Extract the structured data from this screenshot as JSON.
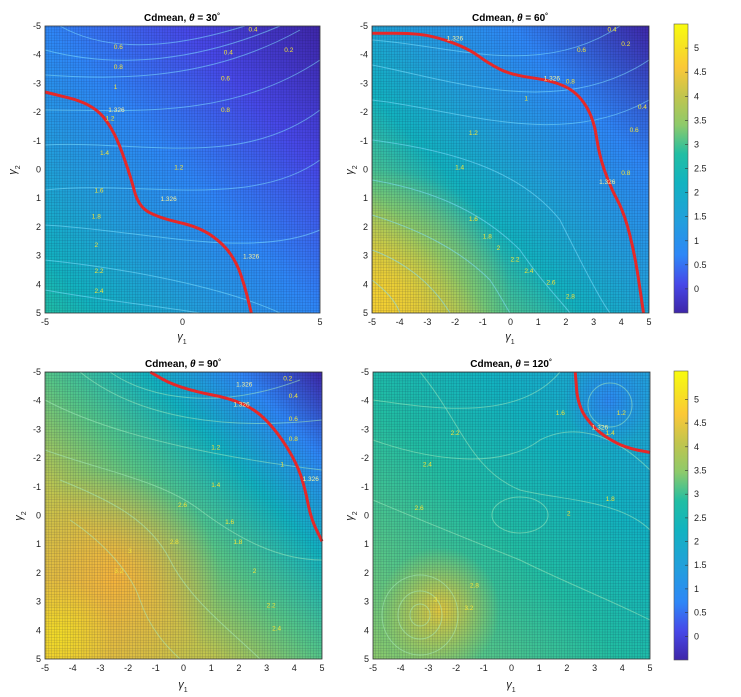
{
  "chart_data": [
    {
      "type": "heatmap",
      "title_prefix": "Cdmean, ",
      "theta_symbol": "θ",
      "title_value": " = 30",
      "degree": "°",
      "xlabel": "γ",
      "xlabel_sub": "1",
      "ylabel": "γ",
      "ylabel_sub": "2",
      "xlim": [
        -5,
        5
      ],
      "ylim": [
        -5,
        5
      ],
      "xticks": [
        "-5",
        "0",
        "5"
      ],
      "yticks": [
        "-5",
        "-4",
        "-3",
        "-2",
        "-1",
        "0",
        "1",
        "2",
        "3",
        "4",
        "5"
      ],
      "critical_value": "1.326",
      "contour_labels": [
        "0.4",
        "0.6",
        "0.8",
        "1",
        "1.2",
        "1.4",
        "1.6",
        "1.8",
        "2",
        "2.2",
        "2.4",
        "0.2",
        "0.4",
        "0.6",
        "0.8",
        "1.2",
        "1.326",
        "1.326",
        "1.326"
      ],
      "critical_curve": [
        [
          -5,
          -2.7
        ],
        [
          -3.3,
          -2.3
        ],
        [
          -2.5,
          -1.4
        ],
        [
          -1.9,
          0.2
        ],
        [
          -1.6,
          1.3
        ],
        [
          -0.8,
          1.7
        ],
        [
          0.6,
          2.0
        ],
        [
          1.5,
          2.6
        ],
        [
          2,
          3.3
        ],
        [
          2.3,
          4.2
        ],
        [
          2.5,
          5
        ]
      ]
    },
    {
      "type": "heatmap",
      "title_prefix": "Cdmean, ",
      "theta_symbol": "θ",
      "title_value": " = 60",
      "degree": "°",
      "xlabel": "γ",
      "xlabel_sub": "1",
      "ylabel": "γ",
      "ylabel_sub": "2",
      "xlim": [
        -5,
        5
      ],
      "ylim": [
        -5,
        5
      ],
      "xticks": [
        "-5",
        "-4",
        "-3",
        "-2",
        "-1",
        "0",
        "1",
        "2",
        "3",
        "4",
        "5"
      ],
      "yticks": [
        "-5",
        "-4",
        "-3",
        "-2",
        "-1",
        "0",
        "1",
        "2",
        "3",
        "4",
        "5"
      ],
      "critical_value": "1.326",
      "contour_labels": [
        "0.4",
        "0.6",
        "0.8",
        "1",
        "1.2",
        "1.4",
        "1.6",
        "1.8",
        "2",
        "2.2",
        "2.4",
        "2.6",
        "2.8",
        "0.2",
        "0.4",
        "0.6",
        "0.8",
        "1.326",
        "1.326",
        "1.326"
      ],
      "critical_curve": [
        [
          -5,
          -4.75
        ],
        [
          -3.5,
          -4.75
        ],
        [
          -2.6,
          -4.6
        ],
        [
          -1.5,
          -4.2
        ],
        [
          -0.8,
          -3.7
        ],
        [
          0,
          -3.3
        ],
        [
          1.5,
          -3.1
        ],
        [
          2.4,
          -2.7
        ],
        [
          3,
          -1.8
        ],
        [
          3.2,
          -0.5
        ],
        [
          3.6,
          0.6
        ],
        [
          4.1,
          1.5
        ],
        [
          4.5,
          3
        ],
        [
          4.8,
          5
        ]
      ]
    },
    {
      "type": "heatmap",
      "title_prefix": "Cdmean, ",
      "theta_symbol": "θ",
      "title_value": " = 90",
      "degree": "°",
      "xlabel": "γ",
      "xlabel_sub": "1",
      "ylabel": "γ",
      "ylabel_sub": "2",
      "xlim": [
        -5,
        5
      ],
      "ylim": [
        -5,
        5
      ],
      "xticks": [
        "-5",
        "-4",
        "-3",
        "-2",
        "-1",
        "0",
        "1",
        "2",
        "3",
        "4",
        "5"
      ],
      "yticks": [
        "-5",
        "-4",
        "-3",
        "-2",
        "-1",
        "0",
        "1",
        "2",
        "3",
        "4",
        "5"
      ],
      "critical_value": "1.326",
      "contour_labels": [
        "0.2",
        "0.4",
        "0.6",
        "0.8",
        "1",
        "1.2",
        "1.4",
        "1.6",
        "1.8",
        "2",
        "2.2",
        "2.4",
        "2.6",
        "2.8",
        "3",
        "3.2",
        "1.326",
        "1.326",
        "1.326"
      ],
      "critical_curve": [
        [
          -1.2,
          -5
        ],
        [
          -0.5,
          -4.6
        ],
        [
          0.5,
          -4.3
        ],
        [
          1.6,
          -4.1
        ],
        [
          2.6,
          -3.7
        ],
        [
          3.4,
          -2.9
        ],
        [
          4.1,
          -1.8
        ],
        [
          4.4,
          -0.9
        ],
        [
          4.6,
          0.1
        ],
        [
          5,
          0.9
        ]
      ]
    },
    {
      "type": "heatmap",
      "title_prefix": "Cdmean, ",
      "theta_symbol": "θ",
      "title_value": " = 120",
      "degree": "°",
      "xlabel": "γ",
      "xlabel_sub": "1",
      "ylabel": "γ",
      "ylabel_sub": "2",
      "xlim": [
        -5,
        5
      ],
      "ylim": [
        -5,
        5
      ],
      "xticks": [
        "-5",
        "-4",
        "-3",
        "-2",
        "-1",
        "0",
        "1",
        "2",
        "3",
        "4",
        "5"
      ],
      "yticks": [
        "-5",
        "-4",
        "-3",
        "-2",
        "-1",
        "0",
        "1",
        "2",
        "3",
        "4",
        "5"
      ],
      "critical_value": "1.326",
      "contour_labels": [
        "1.2",
        "1.4",
        "1.6",
        "1.8",
        "2",
        "2.2",
        "2.4",
        "2.6",
        "2.8",
        "3",
        "3.2",
        "1.326"
      ],
      "critical_curve": [
        [
          2.3,
          -5
        ],
        [
          2.4,
          -3.8
        ],
        [
          3,
          -3
        ],
        [
          3.8,
          -2.5
        ],
        [
          4.4,
          -2.3
        ],
        [
          5,
          -2.2
        ]
      ]
    }
  ],
  "colorbars": [
    {
      "ticks": [
        "0",
        "0.5",
        "1",
        "1.5",
        "2",
        "2.5",
        "3",
        "3.5",
        "4",
        "4.5",
        "5"
      ],
      "range": [
        -0.5,
        5.5
      ]
    },
    {
      "ticks": [
        "0",
        "0.5",
        "1",
        "1.5",
        "2",
        "2.5",
        "3",
        "3.5",
        "4",
        "4.5",
        "5"
      ],
      "range": [
        -0.5,
        5.6
      ]
    }
  ],
  "colors": {
    "colormap": [
      "#3e26a8",
      "#4433c8",
      "#4748e8",
      "#4269f9",
      "#2e87f7",
      "#229fdc",
      "#12b3c0",
      "#21bea3",
      "#55c688",
      "#8dca6b",
      "#c1c54e",
      "#e8be3b",
      "#fbc838",
      "#f6e521",
      "#f9fb0e"
    ],
    "critical_curve": "#e62828",
    "grid": "#0a0a32",
    "contour_label": "#f2e33a"
  }
}
